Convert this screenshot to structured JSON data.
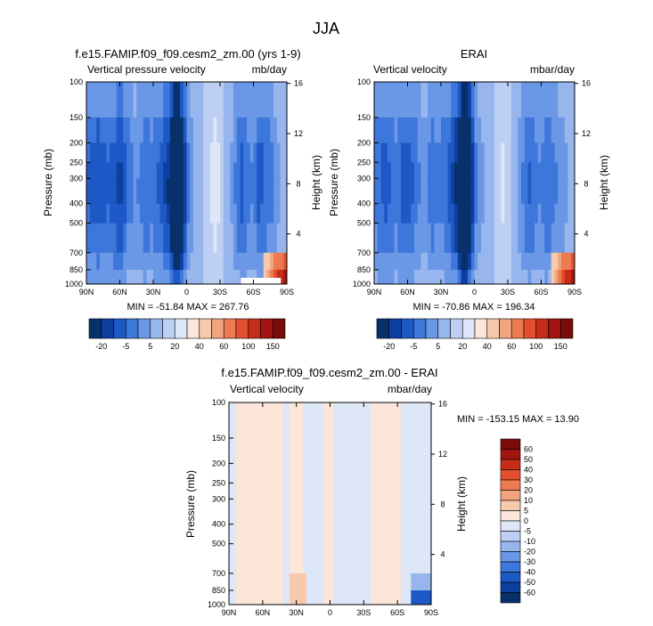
{
  "figure_title": "JJA",
  "colors": {
    "model_palette": [
      "#08306b",
      "#0d3fa0",
      "#1d58c6",
      "#3d77dc",
      "#6a97e6",
      "#97b6ee",
      "#bdd0f4",
      "#dde7f8",
      "#fbe6d9",
      "#f7c9ad",
      "#f2a47e",
      "#ee7a52",
      "#e4502f",
      "#c72c19",
      "#a3140f",
      "#7a0b0b"
    ],
    "diff_palette": [
      "#08306b",
      "#0d3fa0",
      "#1d58c6",
      "#3d77dc",
      "#6a97e6",
      "#97b6ee",
      "#bdd0f4",
      "#dde7f8",
      "#fbe6d9",
      "#f7c9ad",
      "#f2a47e",
      "#ee7a52",
      "#e4502f",
      "#c72c19",
      "#a3140f",
      "#7a0b0b"
    ]
  },
  "chart_data": [
    {
      "type": "heatmap",
      "title": "f.e15.FAMIP.f09_f09.cesm2_zm.00 (yrs 1-9)",
      "left_label": "Vertical pressure velocity",
      "right_label": "mb/day",
      "ylabel": "Pressure (mb)",
      "ylabel_right": "Height (km)",
      "x_ticks": [
        "90N",
        "60N",
        "30N",
        "0",
        "30S",
        "60S",
        "90S"
      ],
      "x_values": [
        90,
        60,
        30,
        0,
        -30,
        -60,
        -90
      ],
      "y_ticks": [
        "100",
        "150",
        "200",
        "250",
        "300",
        "400",
        "500",
        "700",
        "850",
        "1000"
      ],
      "y_values": [
        100,
        150,
        200,
        250,
        300,
        400,
        500,
        700,
        850,
        1000
      ],
      "y_right_ticks": [
        "16",
        "12",
        "8",
        "4"
      ],
      "y_right_values": [
        16,
        12,
        8,
        4
      ],
      "min_max_text": "MIN = -51.84   MAX = 267.76",
      "profile": [
        [
          90,
          -12
        ],
        [
          80,
          -16
        ],
        [
          70,
          -12
        ],
        [
          60,
          -18
        ],
        [
          52,
          -10
        ],
        [
          45,
          -7
        ],
        [
          38,
          -12
        ],
        [
          32,
          -10
        ],
        [
          25,
          -13
        ],
        [
          20,
          -16
        ],
        [
          15,
          -22
        ],
        [
          10,
          -45
        ],
        [
          7,
          -40
        ],
        [
          4,
          -30
        ],
        [
          0,
          -12
        ],
        [
          -5,
          -5
        ],
        [
          -10,
          -2
        ],
        [
          -15,
          -1
        ],
        [
          -20,
          3
        ],
        [
          -25,
          6
        ],
        [
          -30,
          4
        ],
        [
          -35,
          -1
        ],
        [
          -40,
          -4
        ],
        [
          -45,
          -10
        ],
        [
          -50,
          -14
        ],
        [
          -55,
          -10
        ],
        [
          -60,
          -8
        ],
        [
          -65,
          -14
        ],
        [
          -70,
          -12
        ],
        [
          -75,
          -10
        ],
        [
          -80,
          -6
        ],
        [
          -85,
          -4
        ],
        [
          -90,
          -3
        ]
      ],
      "colorbar": {
        "labels": [
          "-20",
          "-5",
          "5",
          "20",
          "40",
          "60",
          "100",
          "150"
        ]
      }
    },
    {
      "type": "heatmap",
      "title": "ERAI",
      "left_label": "Vertical velocity",
      "right_label": "mbar/day",
      "ylabel": "Pressure (mb)",
      "ylabel_right": "Height (km)",
      "x_ticks": [
        "90N",
        "60N",
        "30N",
        "0",
        "30S",
        "60S",
        "90S"
      ],
      "x_values": [
        90,
        60,
        30,
        0,
        -30,
        -60,
        -90
      ],
      "y_ticks": [
        "100",
        "150",
        "200",
        "250",
        "300",
        "400",
        "500",
        "700",
        "850",
        "1000"
      ],
      "y_values": [
        100,
        150,
        200,
        250,
        300,
        400,
        500,
        700,
        850,
        1000
      ],
      "y_right_ticks": [
        "16",
        "12",
        "8",
        "4"
      ],
      "y_right_values": [
        16,
        12,
        8,
        4
      ],
      "min_max_text": "MIN = -70.86   MAX = 196.34",
      "profile": [
        [
          90,
          -10
        ],
        [
          80,
          -14
        ],
        [
          70,
          -10
        ],
        [
          60,
          -16
        ],
        [
          52,
          -10
        ],
        [
          45,
          -6
        ],
        [
          38,
          -11
        ],
        [
          32,
          -9
        ],
        [
          25,
          -12
        ],
        [
          20,
          -16
        ],
        [
          15,
          -24
        ],
        [
          10,
          -50
        ],
        [
          7,
          -45
        ],
        [
          4,
          -30
        ],
        [
          0,
          -12
        ],
        [
          -5,
          -6
        ],
        [
          -10,
          -3
        ],
        [
          -15,
          -1
        ],
        [
          -20,
          2
        ],
        [
          -25,
          5
        ],
        [
          -30,
          3
        ],
        [
          -35,
          -2
        ],
        [
          -40,
          -5
        ],
        [
          -45,
          -10
        ],
        [
          -50,
          -13
        ],
        [
          -55,
          -9
        ],
        [
          -60,
          -8
        ],
        [
          -65,
          -12
        ],
        [
          -70,
          -10
        ],
        [
          -75,
          -8
        ],
        [
          -80,
          -6
        ],
        [
          -85,
          -4
        ],
        [
          -90,
          -3
        ]
      ],
      "colorbar": {
        "labels": [
          "-20",
          "-5",
          "5",
          "20",
          "40",
          "60",
          "100",
          "150"
        ]
      }
    },
    {
      "type": "heatmap",
      "title": "f.e15.FAMIP.f09_f09.cesm2_zm.00 - ERAI",
      "left_label": "Vertical velocity",
      "right_label": "mbar/day",
      "ylabel": "Pressure (mb)",
      "ylabel_right": "Height (km)",
      "x_ticks": [
        "90N",
        "60N",
        "30N",
        "0",
        "30S",
        "60S",
        "90S"
      ],
      "x_values": [
        90,
        60,
        30,
        0,
        -30,
        -60,
        -90
      ],
      "y_ticks": [
        "100",
        "150",
        "200",
        "250",
        "300",
        "400",
        "500",
        "700",
        "850",
        "1000"
      ],
      "y_values": [
        100,
        150,
        200,
        250,
        300,
        400,
        500,
        700,
        850,
        1000
      ],
      "y_right_ticks": [
        "16",
        "12",
        "8",
        "4"
      ],
      "y_right_values": [
        16,
        12,
        8,
        4
      ],
      "min_max_text": "MIN = -153.15   MAX =  13.90",
      "profile": [
        [
          90,
          -2
        ],
        [
          80,
          1
        ],
        [
          70,
          2
        ],
        [
          60,
          1
        ],
        [
          50,
          2
        ],
        [
          40,
          -1
        ],
        [
          30,
          2
        ],
        [
          20,
          -2
        ],
        [
          10,
          -1
        ],
        [
          0,
          1
        ],
        [
          -10,
          -2
        ],
        [
          -20,
          -1
        ],
        [
          -30,
          -2
        ],
        [
          -40,
          2
        ],
        [
          -50,
          3
        ],
        [
          -60,
          1
        ],
        [
          -70,
          -2
        ],
        [
          -80,
          -3
        ],
        [
          -90,
          -2
        ]
      ],
      "colorbar": {
        "labels": [
          "60",
          "50",
          "40",
          "30",
          "20",
          "10",
          "5",
          "0",
          "-5",
          "-10",
          "-20",
          "-30",
          "-40",
          "-50",
          "-60"
        ]
      }
    }
  ]
}
